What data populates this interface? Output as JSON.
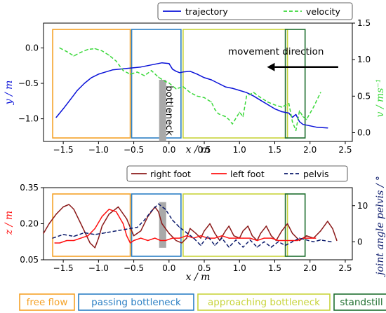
{
  "colors": {
    "trajectory": "#0a12d8",
    "velocity": "#3ad83a",
    "right_foot": "#8b1a1a",
    "left_foot": "#ff1010",
    "pelvis": "#0b1a6b",
    "free_flow": "#f5a227",
    "passing_bottleneck": "#2b7fc4",
    "approaching_bottleneck": "#c8d43b",
    "standstill": "#1e6e2e",
    "bottleneck_bar": "#a9a9a9"
  },
  "phases": [
    {
      "label": "free flow",
      "x_start": -1.65,
      "x_end": -0.55,
      "color_key": "free_flow"
    },
    {
      "label": "passing bottleneck",
      "x_start": -0.53,
      "x_end": 0.17,
      "color_key": "passing_bottleneck"
    },
    {
      "label": "approaching bottleneck",
      "x_start": 0.2,
      "x_end": 1.68,
      "color_key": "approaching_bottleneck"
    },
    {
      "label": "standstill",
      "x_start": 1.65,
      "x_end": 1.93,
      "color_key": "standstill"
    }
  ],
  "chart_data": [
    {
      "type": "line",
      "xlabel": "x / m",
      "ylabel": "y / m",
      "y2label": "v / ms⁻¹",
      "xlim": [
        -1.78,
        2.6
      ],
      "ylim": [
        -1.32,
        0.35
      ],
      "y2lim": [
        -0.12,
        1.5
      ],
      "xticks": [
        "−1.5",
        "−1.0",
        "−0.5",
        "0.0",
        "0.5",
        "1.0",
        "1.5",
        "2.0",
        "2.5"
      ],
      "xtick_values": [
        -1.5,
        -1.0,
        -0.5,
        0.0,
        0.5,
        1.0,
        1.5,
        2.0,
        2.5
      ],
      "yticks": [
        "0.0",
        "−0.5",
        "−1.0"
      ],
      "ytick_values": [
        0.0,
        -0.5,
        -1.0
      ],
      "y2ticks": [
        "1.5",
        "1.0",
        "0.5",
        "0.0"
      ],
      "y2tick_values": [
        1.5,
        1.0,
        0.5,
        0.0
      ],
      "legend": [
        "trajectory",
        "velocity"
      ],
      "annotation": "movement direction",
      "bottleneck_label": "bottleneck",
      "bottleneck": {
        "x_start": -0.14,
        "x_end": -0.04,
        "y_start": -1.32,
        "y_end": -0.45
      },
      "arrow": {
        "x_from": 2.4,
        "x_to": 1.4,
        "y": -0.27
      },
      "series": [
        {
          "name": "trajectory",
          "axis": "left",
          "x": [
            -1.6,
            -1.5,
            -1.4,
            -1.3,
            -1.2,
            -1.1,
            -1.0,
            -0.9,
            -0.8,
            -0.7,
            -0.6,
            -0.5,
            -0.4,
            -0.3,
            -0.2,
            -0.1,
            0.0,
            0.05,
            0.1,
            0.15,
            0.2,
            0.3,
            0.4,
            0.5,
            0.6,
            0.7,
            0.8,
            0.9,
            1.0,
            1.1,
            1.2,
            1.3,
            1.4,
            1.5,
            1.6,
            1.7,
            1.75,
            1.8,
            1.85,
            1.9,
            2.0,
            2.1,
            2.25
          ],
          "y": [
            -0.98,
            -0.86,
            -0.73,
            -0.6,
            -0.5,
            -0.42,
            -0.37,
            -0.34,
            -0.31,
            -0.3,
            -0.29,
            -0.28,
            -0.27,
            -0.25,
            -0.23,
            -0.21,
            -0.22,
            -0.3,
            -0.33,
            -0.35,
            -0.34,
            -0.33,
            -0.37,
            -0.42,
            -0.45,
            -0.5,
            -0.55,
            -0.57,
            -0.6,
            -0.63,
            -0.68,
            -0.74,
            -0.8,
            -0.86,
            -0.9,
            -0.92,
            -0.98,
            -0.94,
            -1.04,
            -1.08,
            -1.1,
            -1.12,
            -1.13
          ]
        },
        {
          "name": "velocity",
          "axis": "right",
          "x": [
            -1.55,
            -1.45,
            -1.35,
            -1.25,
            -1.15,
            -1.05,
            -0.95,
            -0.85,
            -0.75,
            -0.65,
            -0.55,
            -0.45,
            -0.35,
            -0.25,
            -0.15,
            -0.05,
            0.0,
            0.1,
            0.2,
            0.3,
            0.4,
            0.5,
            0.6,
            0.65,
            0.7,
            0.8,
            0.85,
            0.9,
            1.0,
            1.05,
            1.1,
            1.2,
            1.3,
            1.4,
            1.5,
            1.6,
            1.7,
            1.75,
            1.8,
            1.85,
            1.9,
            1.95,
            2.05,
            2.15
          ],
          "y": [
            1.16,
            1.11,
            1.05,
            1.1,
            1.14,
            1.15,
            1.12,
            1.06,
            0.98,
            0.85,
            0.8,
            0.83,
            0.78,
            0.85,
            0.76,
            0.7,
            0.68,
            0.6,
            0.63,
            0.55,
            0.5,
            0.48,
            0.42,
            0.32,
            0.26,
            0.22,
            0.18,
            0.12,
            0.28,
            0.22,
            0.5,
            0.55,
            0.48,
            0.42,
            0.38,
            0.35,
            0.4,
            0.15,
            0.03,
            0.3,
            0.22,
            0.18,
            0.35,
            0.55
          ]
        }
      ]
    },
    {
      "type": "line",
      "xlabel": "x / m",
      "ylabel": "z / m",
      "y2label": "joint angle pelvis / °",
      "xlim": [
        -1.78,
        2.6
      ],
      "ylim": [
        0.05,
        0.35
      ],
      "y2lim": [
        -5,
        15
      ],
      "xticks": [
        "−1.5",
        "−1.0",
        "−0.5",
        "0.0",
        "0.5",
        "1.0",
        "1.5",
        "2.0",
        "2.5"
      ],
      "xtick_values": [
        -1.5,
        -1.0,
        -0.5,
        0.0,
        0.5,
        1.0,
        1.5,
        2.0,
        2.5
      ],
      "yticks": [
        "0.35",
        "0.20",
        "0.05"
      ],
      "ytick_values": [
        0.35,
        0.2,
        0.05
      ],
      "y2ticks": [
        "10",
        "0"
      ],
      "y2tick_values": [
        10,
        0
      ],
      "legend": [
        "right foot",
        "left foot",
        "pelvis"
      ],
      "bottleneck": {
        "x_start": -0.14,
        "x_end": -0.04,
        "y_start": 0.1,
        "y_end": 0.29
      },
      "series": [
        {
          "name": "right foot",
          "axis": "left",
          "x": [
            -1.78,
            -1.7,
            -1.6,
            -1.5,
            -1.42,
            -1.35,
            -1.25,
            -1.12,
            -1.05,
            -1.0,
            -0.95,
            -0.85,
            -0.72,
            -0.6,
            -0.5,
            -0.4,
            -0.3,
            -0.2,
            -0.15,
            -0.1,
            0.0,
            0.1,
            0.18,
            0.25,
            0.3,
            0.38,
            0.45,
            0.5,
            0.58,
            0.65,
            0.72,
            0.8,
            0.85,
            0.92,
            1.0,
            1.05,
            1.12,
            1.18,
            1.25,
            1.3,
            1.38,
            1.45,
            1.52,
            1.6,
            1.68,
            1.75,
            1.85,
            1.95,
            2.05,
            2.15,
            2.25,
            2.32,
            2.38
          ],
          "y": [
            0.16,
            0.2,
            0.24,
            0.27,
            0.28,
            0.26,
            0.2,
            0.12,
            0.1,
            0.14,
            0.19,
            0.24,
            0.27,
            0.22,
            0.15,
            0.17,
            0.23,
            0.27,
            0.25,
            0.2,
            0.16,
            0.13,
            0.12,
            0.14,
            0.18,
            0.16,
            0.14,
            0.17,
            0.2,
            0.16,
            0.13,
            0.17,
            0.19,
            0.15,
            0.14,
            0.17,
            0.19,
            0.15,
            0.13,
            0.16,
            0.19,
            0.15,
            0.13,
            0.17,
            0.2,
            0.16,
            0.13,
            0.15,
            0.14,
            0.17,
            0.21,
            0.18,
            0.13
          ]
        },
        {
          "name": "left foot",
          "axis": "left",
          "x": [
            -1.62,
            -1.55,
            -1.45,
            -1.35,
            -1.25,
            -1.15,
            -1.05,
            -0.95,
            -0.85,
            -0.75,
            -0.65,
            -0.6,
            -0.55,
            -0.5,
            -0.4,
            -0.3,
            -0.2,
            -0.12,
            -0.05,
            0.05,
            0.15,
            0.25,
            0.35,
            0.45,
            0.55,
            0.65,
            0.75,
            0.85,
            0.95,
            1.05,
            1.15,
            1.25,
            1.35,
            1.45,
            1.55,
            1.65,
            1.75,
            1.82,
            1.9,
            2.0,
            2.08
          ],
          "y": [
            0.12,
            0.12,
            0.13,
            0.13,
            0.14,
            0.15,
            0.18,
            0.23,
            0.26,
            0.25,
            0.2,
            0.15,
            0.12,
            0.13,
            0.14,
            0.13,
            0.14,
            0.13,
            0.13,
            0.14,
            0.14,
            0.15,
            0.14,
            0.15,
            0.14,
            0.14,
            0.15,
            0.14,
            0.14,
            0.14,
            0.14,
            0.13,
            0.14,
            0.14,
            0.13,
            0.13,
            0.13,
            0.13,
            0.14,
            0.14,
            0.14
          ]
        },
        {
          "name": "pelvis",
          "axis": "right",
          "x": [
            -1.65,
            -1.5,
            -1.35,
            -1.2,
            -1.05,
            -0.9,
            -0.75,
            -0.6,
            -0.45,
            -0.35,
            -0.25,
            -0.15,
            -0.05,
            0.05,
            0.15,
            0.25,
            0.35,
            0.45,
            0.55,
            0.65,
            0.75,
            0.85,
            0.95,
            1.05,
            1.15,
            1.25,
            1.35,
            1.45,
            1.55,
            1.65,
            1.75,
            1.85,
            1.95,
            2.05,
            2.15,
            2.3
          ],
          "y": [
            1,
            2,
            1.5,
            2.5,
            2,
            2.5,
            3,
            3.5,
            4,
            6,
            8.5,
            10.5,
            9,
            6,
            4,
            2.5,
            1,
            -1,
            1.5,
            -1,
            1,
            -1.5,
            0.5,
            -1.5,
            0.5,
            -1.5,
            0,
            -1.5,
            0,
            -1,
            0,
            1,
            0.5,
            0,
            0.5,
            0
          ]
        }
      ]
    }
  ]
}
